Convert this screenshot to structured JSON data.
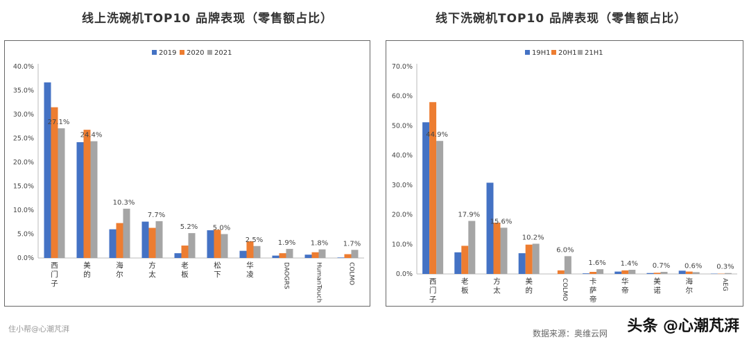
{
  "titles": {
    "left": "线上洗碗机TOP10 品牌表现（零售额占比）",
    "right": "线下洗碗机TOP10 品牌表现（零售额占比）"
  },
  "footer": {
    "left_watermark": "住小帮@心潮芃湃",
    "source": "数据来源：奥维云网",
    "account": "头条 @心潮芃湃"
  },
  "colors": {
    "series1": "#4472C4",
    "series2": "#ED7D31",
    "series3": "#A5A5A5"
  },
  "chart_data": [
    {
      "type": "bar",
      "title": "线上洗碗机TOP10 品牌表现（零售额占比）",
      "categories": [
        "西门子",
        "美的",
        "海尔",
        "方太",
        "老板",
        "松下",
        "华凌",
        "DAOGRS",
        "HumanTouch",
        "COLMO"
      ],
      "vertical_categories": [
        false,
        false,
        false,
        false,
        false,
        false,
        false,
        true,
        true,
        true
      ],
      "series": [
        {
          "name": "2019",
          "values": [
            36.7,
            24.2,
            6.0,
            7.6,
            1.0,
            5.8,
            1.5,
            0.5,
            0.7,
            0.1
          ]
        },
        {
          "name": "2020",
          "values": [
            31.5,
            26.8,
            7.3,
            6.3,
            2.6,
            5.9,
            3.5,
            1.0,
            1.2,
            0.8
          ]
        },
        {
          "name": "2021",
          "values": [
            27.1,
            24.4,
            10.3,
            7.7,
            5.2,
            5.0,
            2.5,
            1.9,
            1.8,
            1.7
          ]
        }
      ],
      "data_labels": [
        "27.1%",
        "24.4%",
        "10.3%",
        "7.7%",
        "5.2%",
        "5.0%",
        "2.5%",
        "1.9%",
        "1.8%",
        "1.7%"
      ],
      "yticks": [
        "0.0%",
        "5.0%",
        "10.0%",
        "15.0%",
        "20.0%",
        "25.0%",
        "30.0%",
        "35.0%",
        "40.0%"
      ],
      "ylim": [
        0,
        40
      ],
      "legend": "top-center",
      "grid": false
    },
    {
      "type": "bar",
      "title": "线下洗碗机TOP10 品牌表现（零售额占比）",
      "categories": [
        "西门子",
        "老板",
        "方太",
        "美的",
        "COLMO",
        "卡萨帝",
        "华帝",
        "美诺",
        "海尔",
        "AEG"
      ],
      "vertical_categories": [
        false,
        false,
        false,
        false,
        true,
        false,
        false,
        false,
        false,
        true
      ],
      "series": [
        {
          "name": "19H1",
          "values": [
            51.2,
            7.3,
            30.8,
            7.0,
            0.0,
            0.2,
            0.8,
            0.3,
            1.1,
            0.1
          ]
        },
        {
          "name": "20H1",
          "values": [
            58.0,
            9.5,
            17.3,
            9.9,
            1.2,
            0.7,
            1.2,
            0.4,
            0.8,
            0.1
          ]
        },
        {
          "name": "21H1",
          "values": [
            44.9,
            17.9,
            15.6,
            10.2,
            6.0,
            1.6,
            1.4,
            0.7,
            0.6,
            0.3
          ]
        }
      ],
      "data_labels": [
        "44.9%",
        "17.9%",
        "15.6%",
        "10.2%",
        "6.0%",
        "1.6%",
        "1.4%",
        "0.7%",
        "0.6%",
        "0.3%"
      ],
      "yticks": [
        "0.0%",
        "10.0%",
        "20.0%",
        "30.0%",
        "40.0%",
        "50.0%",
        "60.0%",
        "70.0%"
      ],
      "ylim": [
        0,
        70
      ],
      "legend": "top-center",
      "grid": false
    }
  ]
}
